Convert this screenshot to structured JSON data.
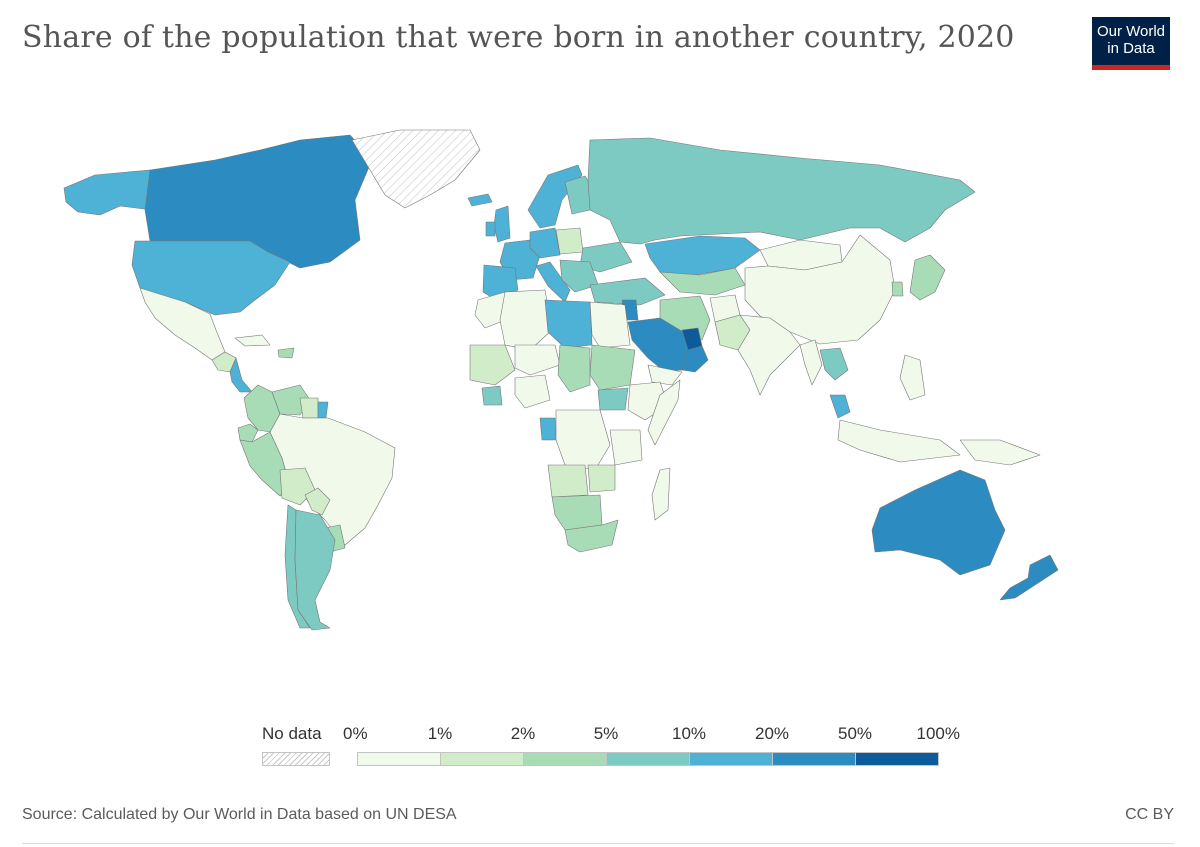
{
  "title": "Share of the population that were born in another country, 2020",
  "logo": {
    "line1": "Our World",
    "line2": "in Data",
    "bg": "#002147",
    "accent": "#ce261e"
  },
  "legend": {
    "no_data_label": "No data",
    "ticks": [
      "0%",
      "1%",
      "2%",
      "5%",
      "10%",
      "20%",
      "50%",
      "100%"
    ],
    "bins": [
      {
        "range": "0–1%",
        "color": "#f1f9ea"
      },
      {
        "range": "1–2%",
        "color": "#d1ecc8"
      },
      {
        "range": "2–5%",
        "color": "#a8dcb6"
      },
      {
        "range": "5–10%",
        "color": "#7dcac2"
      },
      {
        "range": "10–20%",
        "color": "#4eb1d6"
      },
      {
        "range": "20–50%",
        "color": "#2c8bc0"
      },
      {
        "range": "50–100%",
        "color": "#0d5a9c"
      }
    ]
  },
  "chart_data": {
    "type": "choropleth",
    "title": "Share of the population that were born in another country, 2020",
    "unit": "%",
    "regions": [
      {
        "name": "Canada",
        "bin": "20–50%"
      },
      {
        "name": "United States",
        "bin": "10–20%"
      },
      {
        "name": "Greenland",
        "bin": "no data"
      },
      {
        "name": "Alaska",
        "bin": "10–20%"
      },
      {
        "name": "Mexico",
        "bin": "0–1%"
      },
      {
        "name": "Central America",
        "bin": "1–2%"
      },
      {
        "name": "Costa Rica / Panama",
        "bin": "10–20%"
      },
      {
        "name": "Cuba",
        "bin": "0–1%"
      },
      {
        "name": "Dominican Republic",
        "bin": "2–5%"
      },
      {
        "name": "Colombia",
        "bin": "2–5%"
      },
      {
        "name": "Venezuela",
        "bin": "2–5%"
      },
      {
        "name": "Guyana / Suriname",
        "bin": "1–2%"
      },
      {
        "name": "French Guiana",
        "bin": "10–20%"
      },
      {
        "name": "Ecuador",
        "bin": "2–5%"
      },
      {
        "name": "Peru",
        "bin": "2–5%"
      },
      {
        "name": "Brazil",
        "bin": "0–1%"
      },
      {
        "name": "Bolivia",
        "bin": "1–2%"
      },
      {
        "name": "Paraguay",
        "bin": "1–2%"
      },
      {
        "name": "Chile",
        "bin": "5–10%"
      },
      {
        "name": "Argentina",
        "bin": "5–10%"
      },
      {
        "name": "Uruguay",
        "bin": "2–5%"
      },
      {
        "name": "Iceland",
        "bin": "10–20%"
      },
      {
        "name": "United Kingdom",
        "bin": "10–20%"
      },
      {
        "name": "Ireland",
        "bin": "10–20%"
      },
      {
        "name": "Spain / Portugal",
        "bin": "10–20%"
      },
      {
        "name": "France",
        "bin": "10–20%"
      },
      {
        "name": "Germany",
        "bin": "10–20%"
      },
      {
        "name": "Norway / Sweden",
        "bin": "10–20%"
      },
      {
        "name": "Finland",
        "bin": "5–10%"
      },
      {
        "name": "Poland",
        "bin": "1–2%"
      },
      {
        "name": "Ukraine",
        "bin": "5–10%"
      },
      {
        "name": "Italy",
        "bin": "10–20%"
      },
      {
        "name": "Balkans",
        "bin": "5–10%"
      },
      {
        "name": "Turkey",
        "bin": "5–10%"
      },
      {
        "name": "Russia",
        "bin": "5–10%"
      },
      {
        "name": "Kazakhstan",
        "bin": "10–20%"
      },
      {
        "name": "Central Asia",
        "bin": "2–5%"
      },
      {
        "name": "Mongolia",
        "bin": "0–1%"
      },
      {
        "name": "China",
        "bin": "0–1%"
      },
      {
        "name": "Japan",
        "bin": "2–5%"
      },
      {
        "name": "South Korea",
        "bin": "2–5%"
      },
      {
        "name": "Iran",
        "bin": "2–5%"
      },
      {
        "name": "Afghanistan",
        "bin": "0–1%"
      },
      {
        "name": "Pakistan",
        "bin": "1–2%"
      },
      {
        "name": "India",
        "bin": "0–1%"
      },
      {
        "name": "Myanmar",
        "bin": "0–1%"
      },
      {
        "name": "Thailand",
        "bin": "5–10%"
      },
      {
        "name": "Malaysia",
        "bin": "10–20%"
      },
      {
        "name": "Indonesia",
        "bin": "0–1%"
      },
      {
        "name": "Philippines",
        "bin": "0–1%"
      },
      {
        "name": "Papua New Guinea",
        "bin": "0–1%"
      },
      {
        "name": "Saudi Arabia",
        "bin": "20–50%"
      },
      {
        "name": "UAE / Qatar",
        "bin": "50–100%"
      },
      {
        "name": "Oman",
        "bin": "20–50%"
      },
      {
        "name": "Jordan / Israel",
        "bin": "20–50%"
      },
      {
        "name": "Yemen",
        "bin": "0–1%"
      },
      {
        "name": "Morocco",
        "bin": "0–1%"
      },
      {
        "name": "Algeria",
        "bin": "0–1%"
      },
      {
        "name": "Libya",
        "bin": "10–20%"
      },
      {
        "name": "Egypt",
        "bin": "0–1%"
      },
      {
        "name": "Mali",
        "bin": "1–2%"
      },
      {
        "name": "Niger",
        "bin": "0–1%"
      },
      {
        "name": "Chad",
        "bin": "2–5%"
      },
      {
        "name": "Sudan",
        "bin": "2–5%"
      },
      {
        "name": "South Sudan",
        "bin": "5–10%"
      },
      {
        "name": "Ethiopia",
        "bin": "0–1%"
      },
      {
        "name": "Somalia",
        "bin": "0–1%"
      },
      {
        "name": "Nigeria",
        "bin": "0–1%"
      },
      {
        "name": "Côte d'Ivoire",
        "bin": "5–10%"
      },
      {
        "name": "Gabon",
        "bin": "10–20%"
      },
      {
        "name": "DR Congo",
        "bin": "0–1%"
      },
      {
        "name": "Angola",
        "bin": "1–2%"
      },
      {
        "name": "Tanzania",
        "bin": "0–1%"
      },
      {
        "name": "Zambia",
        "bin": "1–2%"
      },
      {
        "name": "Namibia / Botswana",
        "bin": "2–5%"
      },
      {
        "name": "South Africa",
        "bin": "2–5%"
      },
      {
        "name": "Madagascar",
        "bin": "0–1%"
      },
      {
        "name": "Australia",
        "bin": "20–50%"
      },
      {
        "name": "New Zealand",
        "bin": "20–50%"
      }
    ]
  },
  "source": "Source: Calculated by Our World in Data based on UN DESA",
  "license": "CC BY"
}
